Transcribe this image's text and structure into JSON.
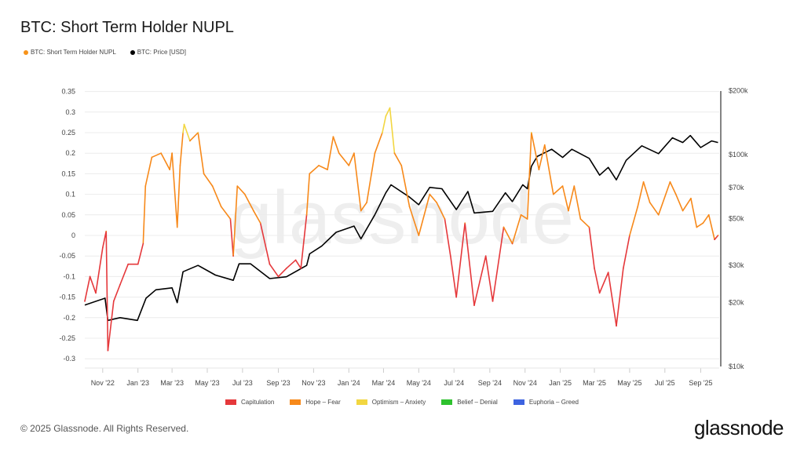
{
  "title": "BTC: Short Term Holder NUPL",
  "footer": "© 2025 Glassnode. All Rights Reserved.",
  "logo": "glassnode",
  "watermark": "glassnode",
  "legend_top": [
    {
      "label": "BTC: Short Term Holder NUPL",
      "color": "#f7931a"
    },
    {
      "label": "BTC: Price [USD]",
      "color": "#000000"
    }
  ],
  "legend_bottom": [
    {
      "label": "Capitulation",
      "color": "#e5383b"
    },
    {
      "label": "Hope – Fear",
      "color": "#f7891a"
    },
    {
      "label": "Optimism – Anxiety",
      "color": "#f2d641"
    },
    {
      "label": "Belief – Denial",
      "color": "#2ec22e"
    },
    {
      "label": "Euphoria – Greed",
      "color": "#3d63e0"
    }
  ],
  "chart_data": {
    "type": "line",
    "title": "BTC: Short Term Holder NUPL",
    "grid": true,
    "legend": "top-left",
    "x_ticks": [
      "Nov '22",
      "Jan '23",
      "Mar '23",
      "May '23",
      "Jul '23",
      "Sep '23",
      "Nov '23",
      "Jan '24",
      "Mar '24",
      "May '24",
      "Jul '24",
      "Sep '24",
      "Nov '24",
      "Jan '25",
      "Mar '25",
      "May '25",
      "Jul '25",
      "Sep '25"
    ],
    "y_left_ticks": [
      "0.35",
      "0.3",
      "0.25",
      "0.2",
      "0.15",
      "0.1",
      "0.05",
      "0",
      "-0.05",
      "-0.1",
      "-0.15",
      "-0.2",
      "-0.25",
      "-0.3"
    ],
    "y_left_range": [
      -0.32,
      0.35
    ],
    "y_right_ticks": [
      "$200k",
      "$100k",
      "$70k",
      "$50k",
      "$30k",
      "$20k",
      "$10k"
    ],
    "y_right_scale": "log",
    "y_right_range": [
      10000,
      200000
    ],
    "zones": [
      {
        "name": "Capitulation",
        "max": 0
      },
      {
        "name": "Hope – Fear",
        "max": 0.25
      },
      {
        "name": "Optimism – Anxiety",
        "max": 0.5
      },
      {
        "name": "Belief – Denial",
        "max": 0.75
      },
      {
        "name": "Euphoria – Greed",
        "max": 1
      }
    ],
    "series": [
      {
        "name": "BTC: Short Term Holder NUPL",
        "axis": "left",
        "points": [
          [
            "2022-10-01",
            -0.16
          ],
          [
            "2022-10-10",
            -0.1
          ],
          [
            "2022-10-20",
            -0.14
          ],
          [
            "2022-11-01",
            -0.03
          ],
          [
            "2022-11-07",
            0.01
          ],
          [
            "2022-11-10",
            -0.28
          ],
          [
            "2022-11-20",
            -0.16
          ],
          [
            "2022-12-01",
            -0.12
          ],
          [
            "2022-12-15",
            -0.07
          ],
          [
            "2023-01-01",
            -0.07
          ],
          [
            "2023-01-10",
            -0.02
          ],
          [
            "2023-01-14",
            0.12
          ],
          [
            "2023-01-25",
            0.19
          ],
          [
            "2023-02-10",
            0.2
          ],
          [
            "2023-02-25",
            0.16
          ],
          [
            "2023-03-01",
            0.2
          ],
          [
            "2023-03-10",
            0.02
          ],
          [
            "2023-03-15",
            0.17
          ],
          [
            "2023-03-20",
            0.25
          ],
          [
            "2023-03-22",
            0.27
          ],
          [
            "2023-04-01",
            0.23
          ],
          [
            "2023-04-15",
            0.25
          ],
          [
            "2023-04-25",
            0.15
          ],
          [
            "2023-05-10",
            0.12
          ],
          [
            "2023-05-25",
            0.07
          ],
          [
            "2023-06-10",
            0.04
          ],
          [
            "2023-06-15",
            -0.05
          ],
          [
            "2023-06-22",
            0.12
          ],
          [
            "2023-07-05",
            0.1
          ],
          [
            "2023-07-20",
            0.06
          ],
          [
            "2023-08-01",
            0.03
          ],
          [
            "2023-08-17",
            -0.07
          ],
          [
            "2023-09-01",
            -0.1
          ],
          [
            "2023-09-15",
            -0.08
          ],
          [
            "2023-10-01",
            -0.06
          ],
          [
            "2023-10-10",
            -0.08
          ],
          [
            "2023-10-20",
            0.05
          ],
          [
            "2023-10-25",
            0.15
          ],
          [
            "2023-11-10",
            0.17
          ],
          [
            "2023-11-25",
            0.16
          ],
          [
            "2023-12-05",
            0.24
          ],
          [
            "2023-12-15",
            0.2
          ],
          [
            "2024-01-01",
            0.17
          ],
          [
            "2024-01-10",
            0.2
          ],
          [
            "2024-01-22",
            0.06
          ],
          [
            "2024-02-01",
            0.08
          ],
          [
            "2024-02-15",
            0.2
          ],
          [
            "2024-02-28",
            0.25
          ],
          [
            "2024-03-05",
            0.29
          ],
          [
            "2024-03-12",
            0.31
          ],
          [
            "2024-03-20",
            0.2
          ],
          [
            "2024-04-01",
            0.17
          ],
          [
            "2024-04-15",
            0.07
          ],
          [
            "2024-05-01",
            0.0
          ],
          [
            "2024-05-20",
            0.1
          ],
          [
            "2024-06-01",
            0.08
          ],
          [
            "2024-06-15",
            0.04
          ],
          [
            "2024-06-25",
            -0.05
          ],
          [
            "2024-07-05",
            -0.15
          ],
          [
            "2024-07-20",
            0.03
          ],
          [
            "2024-08-05",
            -0.17
          ],
          [
            "2024-08-25",
            -0.05
          ],
          [
            "2024-09-06",
            -0.16
          ],
          [
            "2024-09-25",
            0.02
          ],
          [
            "2024-10-10",
            -0.02
          ],
          [
            "2024-10-25",
            0.05
          ],
          [
            "2024-11-05",
            0.04
          ],
          [
            "2024-11-12",
            0.25
          ],
          [
            "2024-11-25",
            0.16
          ],
          [
            "2024-12-05",
            0.22
          ],
          [
            "2024-12-20",
            0.1
          ],
          [
            "2025-01-05",
            0.12
          ],
          [
            "2025-01-15",
            0.06
          ],
          [
            "2025-01-25",
            0.12
          ],
          [
            "2025-02-05",
            0.04
          ],
          [
            "2025-02-20",
            0.02
          ],
          [
            "2025-03-01",
            -0.08
          ],
          [
            "2025-03-10",
            -0.14
          ],
          [
            "2025-03-25",
            -0.09
          ],
          [
            "2025-04-08",
            -0.22
          ],
          [
            "2025-04-20",
            -0.08
          ],
          [
            "2025-05-01",
            0.0
          ],
          [
            "2025-05-15",
            0.07
          ],
          [
            "2025-05-25",
            0.13
          ],
          [
            "2025-06-05",
            0.08
          ],
          [
            "2025-06-20",
            0.05
          ],
          [
            "2025-07-10",
            0.13
          ],
          [
            "2025-07-20",
            0.1
          ],
          [
            "2025-08-01",
            0.06
          ],
          [
            "2025-08-15",
            0.09
          ],
          [
            "2025-08-25",
            0.02
          ],
          [
            "2025-09-05",
            0.03
          ],
          [
            "2025-09-15",
            0.05
          ],
          [
            "2025-09-25",
            -0.01
          ],
          [
            "2025-10-01",
            0.0
          ]
        ]
      },
      {
        "name": "BTC: Price [USD]",
        "axis": "right",
        "color": "#000000",
        "points": [
          [
            "2022-10-01",
            19500
          ],
          [
            "2022-11-05",
            21000
          ],
          [
            "2022-11-10",
            16500
          ],
          [
            "2022-12-01",
            17000
          ],
          [
            "2022-12-31",
            16500
          ],
          [
            "2023-01-15",
            21000
          ],
          [
            "2023-02-01",
            23000
          ],
          [
            "2023-03-01",
            23500
          ],
          [
            "2023-03-10",
            20000
          ],
          [
            "2023-03-20",
            28000
          ],
          [
            "2023-04-15",
            30000
          ],
          [
            "2023-05-15",
            27000
          ],
          [
            "2023-06-15",
            25500
          ],
          [
            "2023-06-25",
            30500
          ],
          [
            "2023-07-15",
            30500
          ],
          [
            "2023-08-17",
            26000
          ],
          [
            "2023-09-15",
            26500
          ],
          [
            "2023-10-20",
            30000
          ],
          [
            "2023-10-25",
            34000
          ],
          [
            "2023-11-15",
            37000
          ],
          [
            "2023-12-10",
            43000
          ],
          [
            "2024-01-10",
            46000
          ],
          [
            "2024-01-22",
            40000
          ],
          [
            "2024-02-15",
            52000
          ],
          [
            "2024-03-05",
            66000
          ],
          [
            "2024-03-14",
            72000
          ],
          [
            "2024-04-15",
            63000
          ],
          [
            "2024-05-01",
            58000
          ],
          [
            "2024-05-20",
            70000
          ],
          [
            "2024-06-10",
            69000
          ],
          [
            "2024-07-05",
            55000
          ],
          [
            "2024-07-25",
            67000
          ],
          [
            "2024-08-05",
            53000
          ],
          [
            "2024-09-06",
            54000
          ],
          [
            "2024-09-28",
            66000
          ],
          [
            "2024-10-10",
            60000
          ],
          [
            "2024-10-28",
            72000
          ],
          [
            "2024-11-05",
            69000
          ],
          [
            "2024-11-12",
            88000
          ],
          [
            "2024-11-22",
            98000
          ],
          [
            "2024-12-17",
            106000
          ],
          [
            "2025-01-05",
            97000
          ],
          [
            "2025-01-21",
            106000
          ],
          [
            "2025-02-20",
            96000
          ],
          [
            "2025-03-10",
            80000
          ],
          [
            "2025-03-25",
            87000
          ],
          [
            "2025-04-08",
            76000
          ],
          [
            "2025-04-25",
            94000
          ],
          [
            "2025-05-22",
            110000
          ],
          [
            "2025-06-20",
            101000
          ],
          [
            "2025-07-14",
            120000
          ],
          [
            "2025-08-01",
            114000
          ],
          [
            "2025-08-14",
            123000
          ],
          [
            "2025-09-01",
            108000
          ],
          [
            "2025-09-20",
            116000
          ],
          [
            "2025-10-01",
            114000
          ]
        ]
      }
    ]
  }
}
